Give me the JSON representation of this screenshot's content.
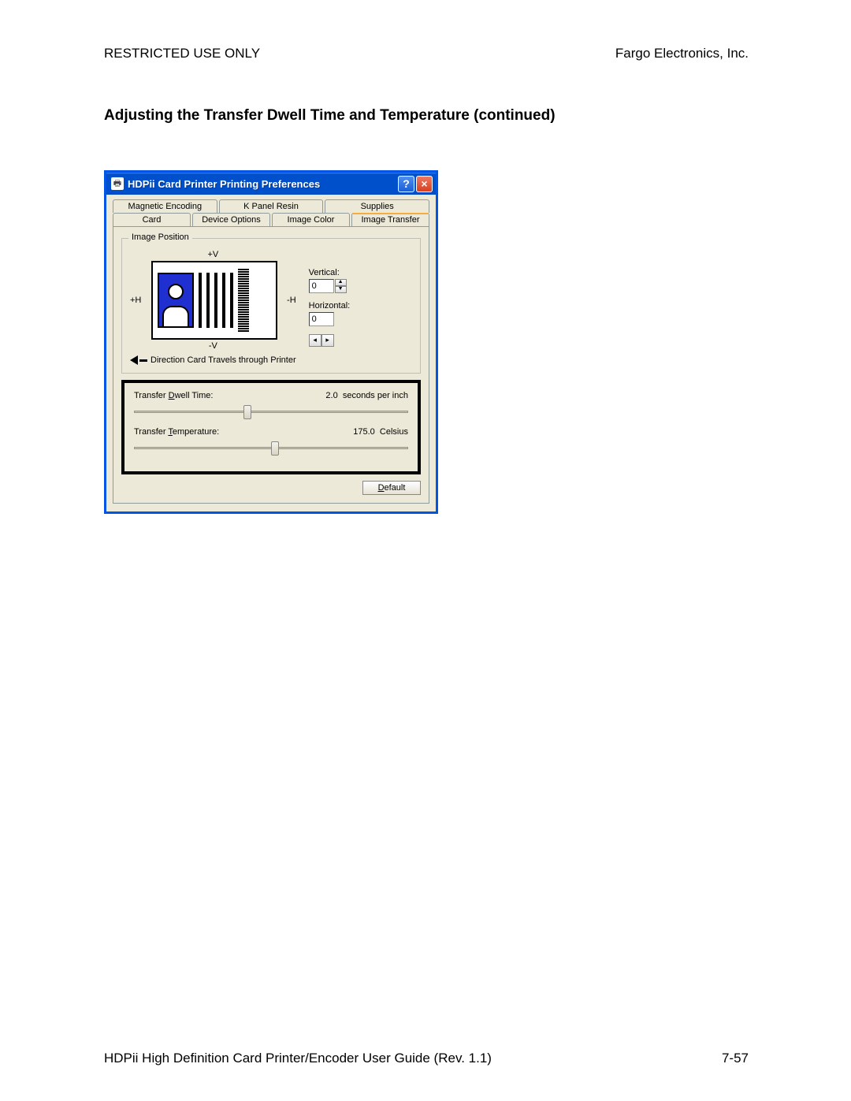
{
  "doc": {
    "header_left": "RESTRICTED USE ONLY",
    "header_right": "Fargo Electronics, Inc.",
    "section_title": "Adjusting the Transfer Dwell Time and Temperature (continued)",
    "footer_left": "HDPii High Definition Card Printer/Encoder User Guide (Rev. 1.1)",
    "footer_right": "7-57"
  },
  "dialog": {
    "title": "HDPii Card Printer Printing Preferences",
    "tabs_back": [
      "Magnetic Encoding",
      "K Panel Resin",
      "Supplies"
    ],
    "tabs_front": [
      "Card",
      "Device Options",
      "Image Color",
      "Image Transfer"
    ],
    "active_tab_index": 3,
    "group_legend": "Image Position",
    "axis": {
      "plus_v": "+V",
      "minus_v": "-V",
      "plus_h": "+H",
      "minus_h": "-H"
    },
    "direction_label": "Direction Card Travels through Printer",
    "vertical_label": "Vertical:",
    "vertical_value": "0",
    "horizontal_label": "Horizontal:",
    "horizontal_value": "0",
    "dwell": {
      "label": "Transfer Dwell Time:",
      "value": "2.0",
      "unit": "seconds per inch",
      "thumb_pct": 40
    },
    "temp": {
      "label": "Transfer Temperature:",
      "value": "175.0",
      "unit": "Celsius",
      "thumb_pct": 50
    },
    "default_button": "Default"
  },
  "colors": {
    "titlebar_bg": "#0050cc",
    "dialog_bg": "#ece9d8",
    "active_tab_highlight": "#f5ad3d",
    "photo_bg": "#2030d0"
  }
}
